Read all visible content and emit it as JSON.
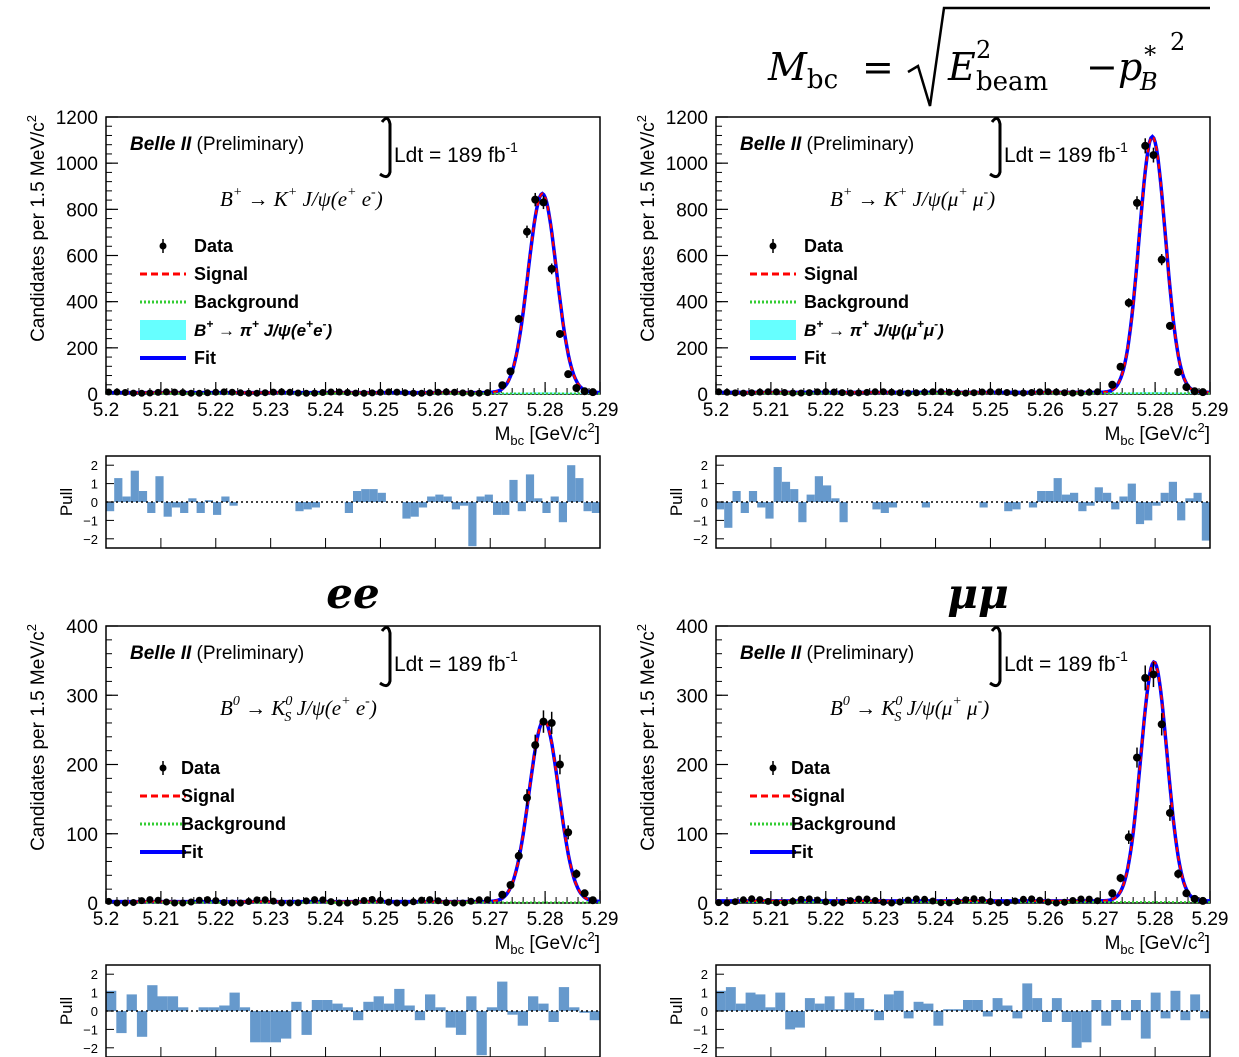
{
  "header": {
    "formula_lhs": "M",
    "formula_lhs_sub": "bc",
    "formula_eq": "=",
    "formula_e": "E",
    "formula_e_sup": "2",
    "formula_e_sub": "beam",
    "formula_minus": "−",
    "formula_p": "p",
    "formula_p_sub": "B",
    "formula_p_sup": "∗",
    "formula_p_sup2": "2"
  },
  "channel_labels": {
    "ee": "ee",
    "mumu": "μμ"
  },
  "common": {
    "belle": "Belle II",
    "prelim": "(Preliminary)",
    "lumi": "Ldt = 189 fb",
    "lumi_sup": "-1",
    "ylabel": "Candidates per 1.5 MeV/c",
    "ylabel_sup": "2",
    "xlabel": "M",
    "xlabel_sub": "bc",
    "xlabel_unit": " [GeV/c",
    "xlabel_unit_sup": "2",
    "xlabel_end": "]",
    "pull_label": "Pull",
    "pull_ticks": [
      "2",
      "1",
      "0",
      "−1",
      "−2"
    ],
    "legend_data": "Data",
    "legend_signal": "Signal",
    "legend_background": "Background",
    "legend_fit": "Fit",
    "colors": {
      "data": "#000000",
      "signal": "#ff0000",
      "background": "#33cc33",
      "peaking": "#66ffff",
      "fit": "#0000ff",
      "pull": "#6699cc"
    }
  },
  "chart_data": [
    {
      "type": "line",
      "channel": "ee",
      "decay": {
        "lhs": "B",
        "lhs_sup": "+",
        "arrow": "→",
        "k": "K",
        "k_sup": "+",
        "k_sub": "",
        "jpsi": " J/ψ(e",
        "l1_sup": "+",
        "mid": " e",
        "l2_sup": "-",
        "end": ")"
      },
      "legend_peaking": {
        "b": "B",
        "b_sup": "+",
        "rest": " → π",
        "pi_sup": "+",
        "jpsi": " J/ψ(e",
        "l1_sup": "+",
        "mid": "e",
        "l2_sup": "-",
        "end": ")"
      },
      "xlabel": "M_bc [GeV/c^2]",
      "ylabel": "Candidates per 1.5 MeV/c^2",
      "xlim": [
        5.2,
        5.29
      ],
      "ylim": [
        0,
        1200
      ],
      "yticks": [
        "0",
        "200",
        "400",
        "600",
        "800",
        "1000",
        "1200"
      ],
      "xticks": [
        "5.2",
        "5.21",
        "5.22",
        "5.23",
        "5.24",
        "5.25",
        "5.26",
        "5.27",
        "5.28",
        "5.29"
      ],
      "peak": {
        "mean": 5.2795,
        "sigma": 0.0026,
        "amplitude": 862
      },
      "background_level": 6,
      "series": [
        {
          "name": "Data",
          "x": [
            5.2722,
            5.2737,
            5.2752,
            5.2767,
            5.2782,
            5.2797,
            5.2812,
            5.2827,
            5.2842,
            5.2857,
            5.2872,
            5.2887
          ],
          "y": [
            38,
            98,
            325,
            703,
            842,
            830,
            542,
            260,
            86,
            26,
            12,
            8
          ]
        }
      ],
      "pulls": [
        -0.5,
        1.3,
        0.3,
        1.7,
        0.6,
        -0.6,
        1.4,
        -0.8,
        -0.3,
        -0.6,
        0.2,
        -0.6,
        0.1,
        -0.7,
        0.3,
        -0.2,
        0,
        0,
        0,
        0,
        0,
        0,
        0,
        -0.5,
        -0.4,
        -0.3,
        0,
        0,
        0,
        -0.6,
        0.6,
        0.7,
        0.7,
        0.5,
        0,
        0,
        -0.9,
        -0.8,
        -0.3,
        0.3,
        0.4,
        0.3,
        -0.4,
        -0.2,
        -2.4,
        0.3,
        0.4,
        -0.7,
        -0.7,
        1.2,
        -0.5,
        1.5,
        0.2,
        -0.6,
        0.3,
        -1.1,
        2.0,
        1.3,
        -0.5,
        -0.6
      ]
    },
    {
      "type": "line",
      "channel": "mumu",
      "decay": {
        "lhs": "B",
        "lhs_sup": "+",
        "arrow": "→",
        "k": "K",
        "k_sup": "+",
        "k_sub": "",
        "jpsi": " J/ψ(μ",
        "l1_sup": "+",
        "mid": " μ",
        "l2_sup": "-",
        "end": ")"
      },
      "legend_peaking": {
        "b": "B",
        "b_sup": "+",
        "rest": " → π",
        "pi_sup": "+",
        "jpsi": " J/ψ(μ",
        "l1_sup": "+",
        "mid": "μ",
        "l2_sup": "-",
        "end": ")"
      },
      "xlabel": "M_bc [GeV/c^2]",
      "ylabel": "Candidates per 1.5 MeV/c^2",
      "xlim": [
        5.2,
        5.29
      ],
      "ylim": [
        0,
        1200
      ],
      "yticks": [
        "0",
        "200",
        "400",
        "600",
        "800",
        "1000",
        "1200"
      ],
      "xticks": [
        "5.2",
        "5.21",
        "5.22",
        "5.23",
        "5.24",
        "5.25",
        "5.26",
        "5.27",
        "5.28",
        "5.29"
      ],
      "peak": {
        "mean": 5.2795,
        "sigma": 0.0024,
        "amplitude": 1108
      },
      "background_level": 7,
      "series": [
        {
          "name": "Data",
          "x": [
            5.2722,
            5.2737,
            5.2752,
            5.2767,
            5.2782,
            5.2797,
            5.2812,
            5.2827,
            5.2842,
            5.2857,
            5.2872,
            5.2887
          ],
          "y": [
            40,
            118,
            395,
            828,
            1075,
            1035,
            582,
            295,
            95,
            30,
            12,
            8
          ]
        }
      ],
      "pulls": [
        -0.4,
        -1.4,
        0.6,
        -0.6,
        0.6,
        -0.3,
        -0.9,
        1.9,
        1.1,
        0.7,
        -1.1,
        0.4,
        1.4,
        0.9,
        0.2,
        -1.1,
        0,
        0,
        0,
        -0.4,
        -0.6,
        -0.3,
        0,
        0,
        0,
        -0.3,
        0,
        0,
        0,
        0,
        0,
        0,
        -0.3,
        0,
        0,
        -0.5,
        -0.4,
        0,
        -0.3,
        0.6,
        0.6,
        1.3,
        0.4,
        0.5,
        -0.5,
        -0.2,
        0.8,
        0.5,
        -0.4,
        0.3,
        1.0,
        -1.2,
        -1.0,
        -0.2,
        0.5,
        1.1,
        -1.0,
        0.2,
        0.5,
        -2.1
      ]
    },
    {
      "type": "line",
      "channel": "ee",
      "decay": {
        "lhs": "B",
        "lhs_sup": "0",
        "arrow": "→",
        "k": "K",
        "k_sup": "0",
        "k_sub": "S",
        "jpsi": " J/ψ(e",
        "l1_sup": "+",
        "mid": " e",
        "l2_sup": "-",
        "end": ")"
      },
      "legend_peaking": null,
      "xlabel": "M_bc [GeV/c^2]",
      "ylabel": "Candidates per 1.5 MeV/c^2",
      "xlim": [
        5.2,
        5.29
      ],
      "ylim": [
        0,
        400
      ],
      "yticks": [
        "0",
        "100",
        "200",
        "300",
        "400"
      ],
      "xticks": [
        "5.2",
        "5.21",
        "5.22",
        "5.23",
        "5.24",
        "5.25",
        "5.26",
        "5.27",
        "5.28",
        "5.29"
      ],
      "peak": {
        "mean": 5.2798,
        "sigma": 0.0027,
        "amplitude": 262
      },
      "background_level": 2,
      "series": [
        {
          "name": "Data",
          "x": [
            5.2722,
            5.2737,
            5.2752,
            5.2767,
            5.2782,
            5.2797,
            5.2812,
            5.2827,
            5.2842,
            5.2857,
            5.2872,
            5.2887
          ],
          "y": [
            12,
            26,
            68,
            152,
            228,
            262,
            260,
            200,
            102,
            42,
            14,
            4
          ]
        }
      ],
      "pulls": [
        1.1,
        -1.2,
        0.9,
        -1.4,
        1.4,
        0.8,
        0.8,
        0.2,
        0,
        0.2,
        0.2,
        0.3,
        1.0,
        0.2,
        -1.7,
        -1.7,
        -1.7,
        -1.5,
        0.5,
        -1.3,
        0.6,
        0.6,
        0.4,
        0.2,
        -0.5,
        0.5,
        0.8,
        0.4,
        1.2,
        0.3,
        -0.5,
        0.9,
        0.2,
        -0.9,
        -1.3,
        0.8,
        -2.4,
        0.2,
        1.6,
        -0.2,
        -0.8,
        0.8,
        0.4,
        -0.6,
        1.3,
        0.2,
        -0.1,
        -0.5
      ]
    },
    {
      "type": "line",
      "channel": "mumu",
      "decay": {
        "lhs": "B",
        "lhs_sup": "0",
        "arrow": "→",
        "k": "K",
        "k_sup": "0",
        "k_sub": "S",
        "jpsi": " J/ψ(μ",
        "l1_sup": "+",
        "mid": " μ",
        "l2_sup": "-",
        "end": ")"
      },
      "legend_peaking": null,
      "xlabel": "M_bc [GeV/c^2]",
      "ylabel": "Candidates per 1.5 MeV/c^2",
      "xlim": [
        5.2,
        5.29
      ],
      "ylim": [
        0,
        400
      ],
      "yticks": [
        "0",
        "100",
        "200",
        "300",
        "400"
      ],
      "xticks": [
        "5.2",
        "5.21",
        "5.22",
        "5.23",
        "5.24",
        "5.25",
        "5.26",
        "5.27",
        "5.28",
        "5.29"
      ],
      "peak": {
        "mean": 5.2798,
        "sigma": 0.0024,
        "amplitude": 345
      },
      "background_level": 3,
      "series": [
        {
          "name": "Data",
          "x": [
            5.2722,
            5.2737,
            5.2752,
            5.2767,
            5.2782,
            5.2797,
            5.2812,
            5.2827,
            5.2842,
            5.2857,
            5.2872,
            5.2887
          ],
          "y": [
            14,
            36,
            95,
            210,
            325,
            330,
            258,
            130,
            42,
            14,
            6,
            3
          ]
        }
      ],
      "pulls": [
        1.1,
        1.3,
        0.4,
        1.0,
        0.9,
        0.2,
        1.0,
        -1.0,
        -0.9,
        0.7,
        0.4,
        0.8,
        0.1,
        1.0,
        0.7,
        0.1,
        -0.5,
        0.9,
        1.1,
        -0.4,
        0.5,
        0.4,
        -0.8,
        0.1,
        0.1,
        0.6,
        0.6,
        -0.3,
        0.7,
        0.3,
        -0.4,
        1.5,
        0.7,
        -0.6,
        0.7,
        -0.6,
        -2.0,
        -1.7,
        0.6,
        -0.8,
        0.6,
        -0.5,
        0.6,
        -1.5,
        1.0,
        -0.4,
        1.1,
        -0.5,
        0.9,
        -0.4
      ]
    }
  ]
}
